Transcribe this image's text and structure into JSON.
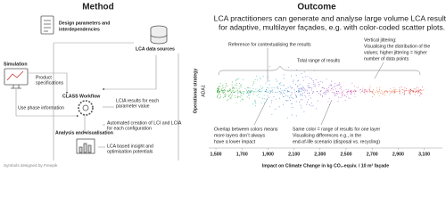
{
  "method": {
    "title": "Method",
    "design": [
      "Design parameters and",
      "interdependencies"
    ],
    "lca_sources": "LCA data sources",
    "simulation": "Simulation",
    "product": [
      "Product",
      "specifications"
    ],
    "workflow": "CLASS Workflow",
    "lcia": [
      "LCIA results for each",
      "parameter value"
    ],
    "use_phase": "Use phase information",
    "automated": [
      "Automated creation of LCI and LCIA",
      "for each configuration"
    ],
    "analysis": "Analysis and visualisation",
    "insight": [
      "LCA based insight and",
      "optimisation potentials"
    ],
    "credit": "Symbols designed by Freepik"
  },
  "outcome": {
    "title": "Outcome",
    "intro": [
      "LCA practitioners can generate and analyse large volume LCA results",
      "for adaptive, multilayer façades, e.g. with color-coded scatter plots."
    ],
    "reference_note": "Reference for contextualising the results",
    "total_range": "Total range of results",
    "jitter": [
      "Vertical jittering:",
      "Visualising the distribution of the",
      "values; higher jittering = higher",
      "number of data points"
    ],
    "overlap": [
      "Overlap between colors means",
      "more layers don’t always",
      "have a lower impact"
    ],
    "same_color": [
      "Same color = range of results for one layer",
      "Visualising differences e.g., in the",
      "end-of-life scenario (disposal vs. recycling)"
    ]
  },
  "chart_data": {
    "type": "scatter",
    "ylabel": "Operational strategy",
    "categories": [
      "ADA1"
    ],
    "xlabel": "Impact on Climate Change in kg CO₂-equiv. / 10 m² façade",
    "xlim": [
      1445,
      3240
    ],
    "xticks": [
      {
        "value": 1500,
        "label": "1,500"
      },
      {
        "value": 1700,
        "label": "1,700"
      },
      {
        "value": 1900,
        "label": "1,900"
      },
      {
        "value": 2100,
        "label": "2,100"
      },
      {
        "value": 2300,
        "label": "2,300"
      },
      {
        "value": 2500,
        "label": "2,500"
      },
      {
        "value": 2700,
        "label": "2,700"
      },
      {
        "value": 2900,
        "label": "2,900"
      },
      {
        "value": 3100,
        "label": "3,100"
      }
    ]
  }
}
